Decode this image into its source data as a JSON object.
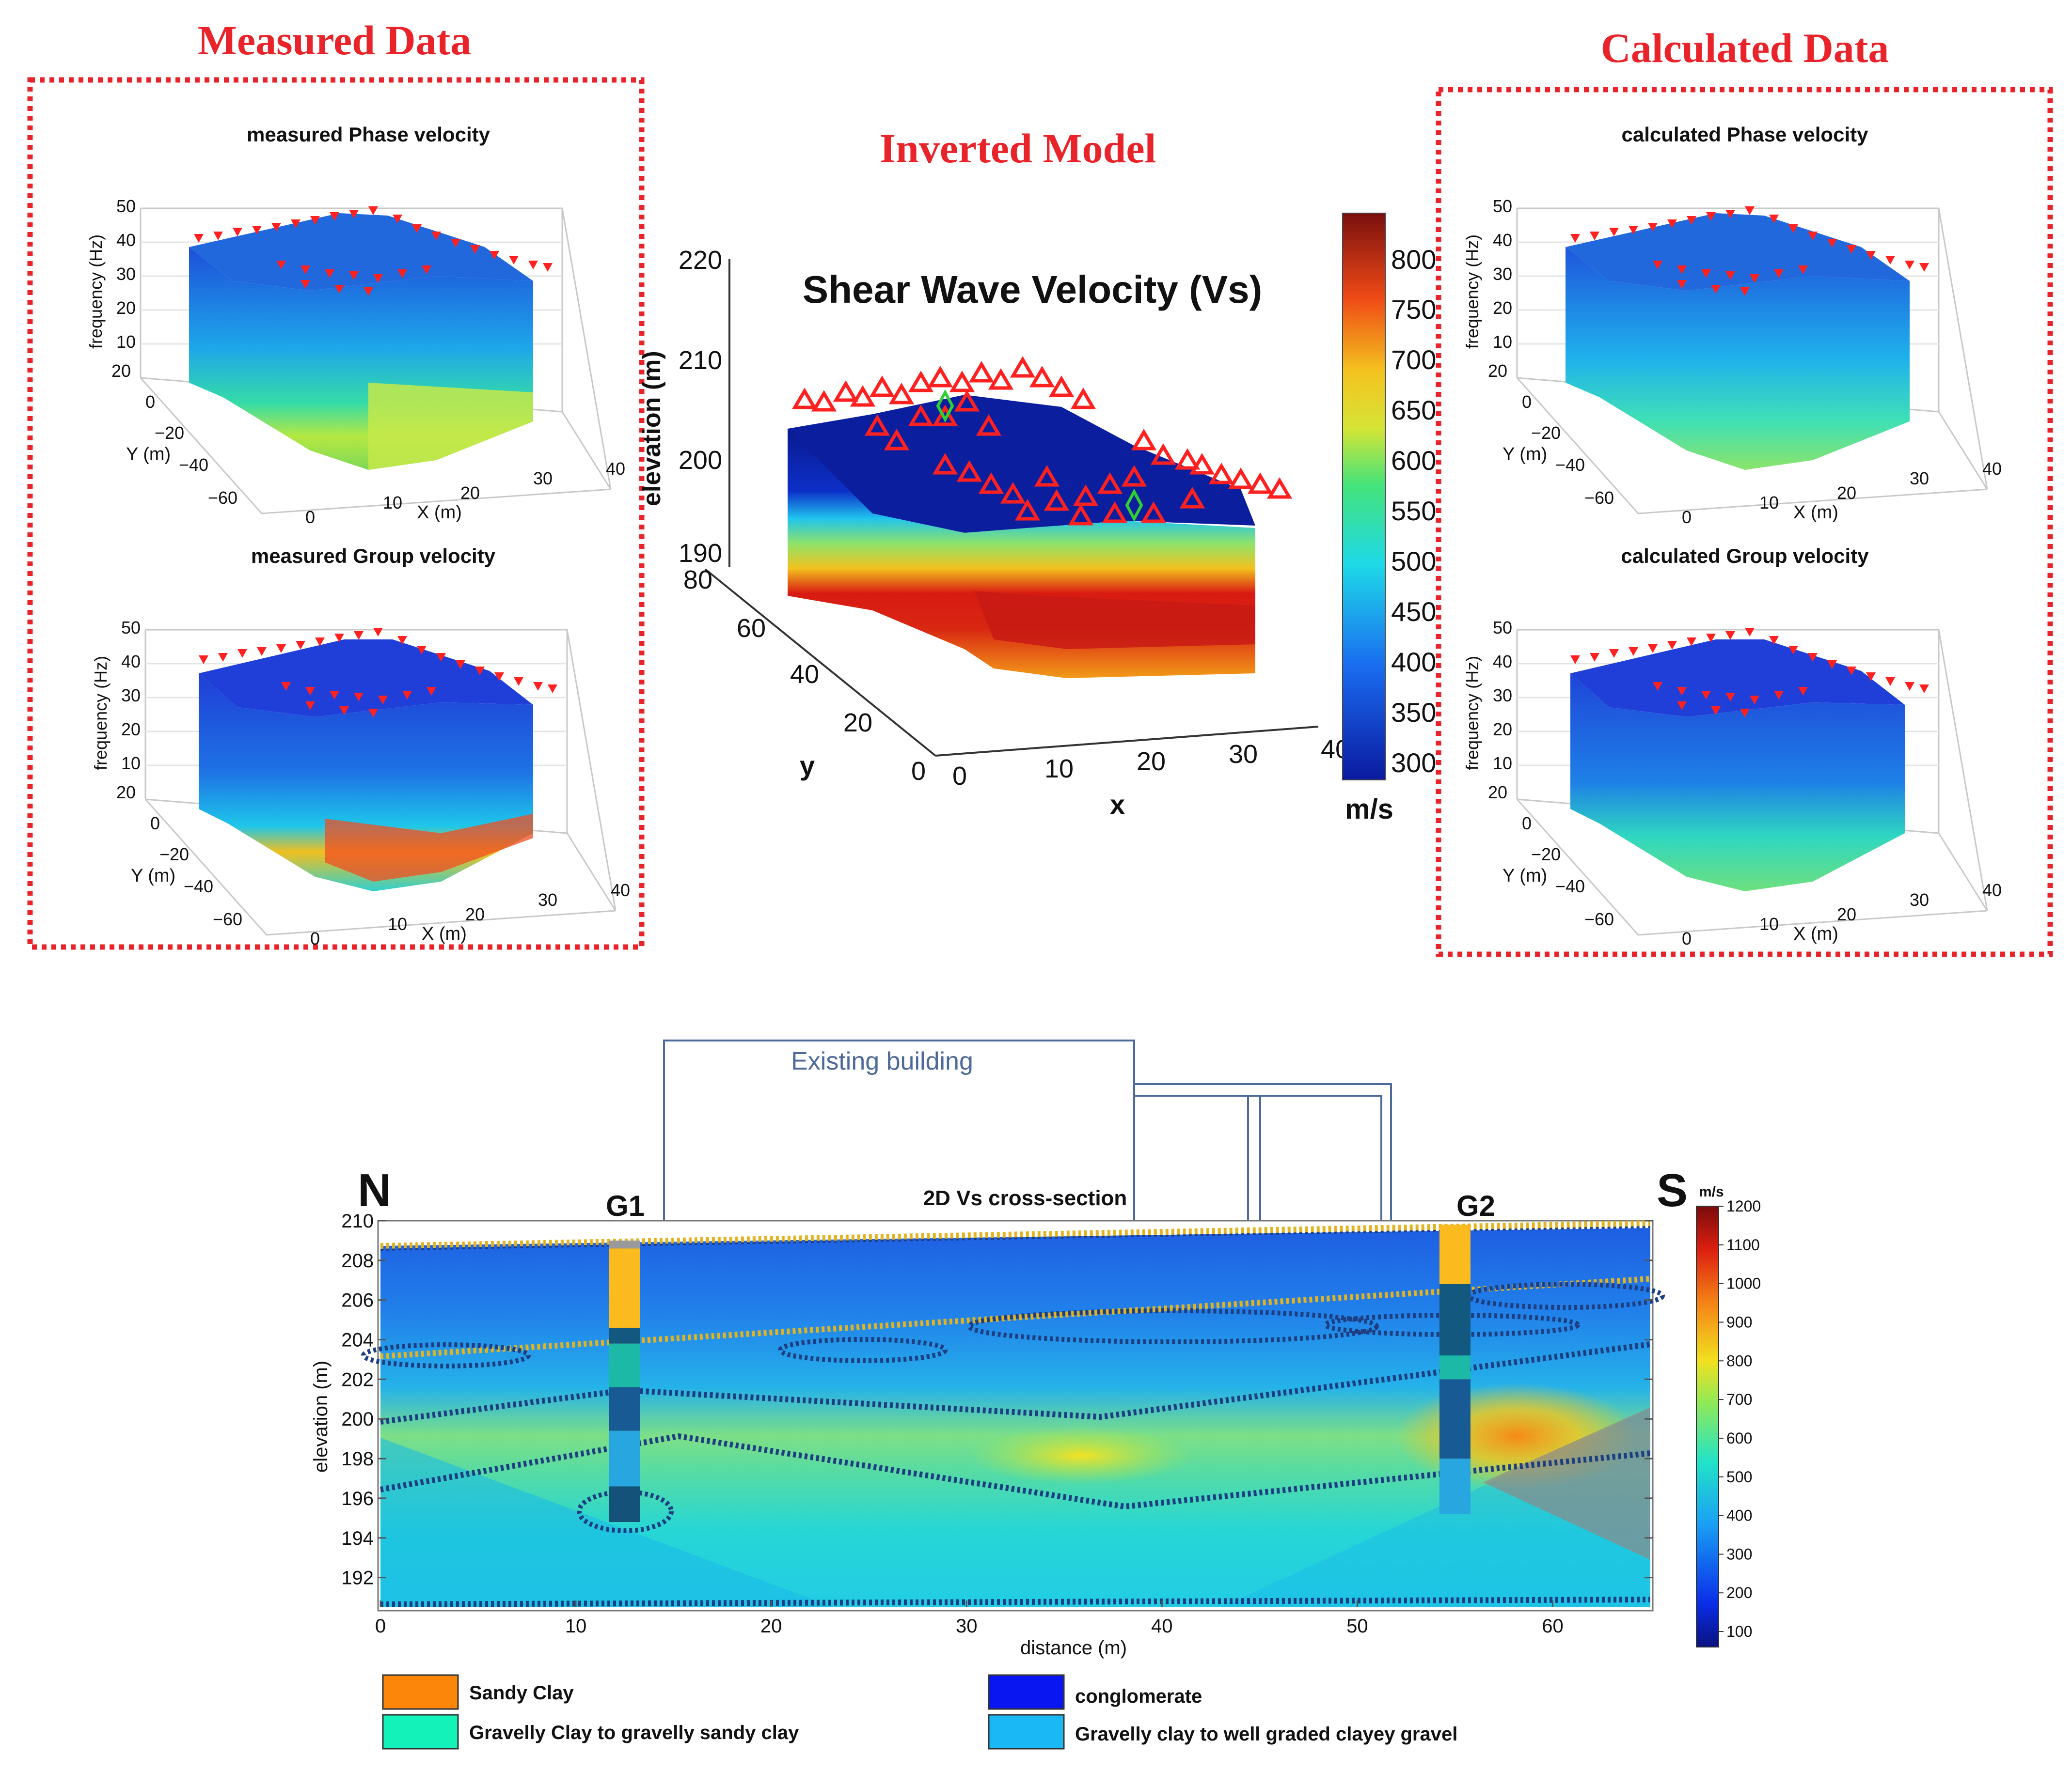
{
  "headers": {
    "measured": "Measured Data",
    "inverted": "Inverted Model",
    "calculated": "Calculated Data"
  },
  "palette": {
    "panel_border": "#e8242a",
    "header": "#e8242a",
    "deep_blue": "#0b1f9e",
    "blue": "#1f57e0",
    "cyan": "#1ec6f0",
    "green": "#3fd88b",
    "yellow": "#e6e033",
    "orange": "#f29a1c",
    "red": "#d51a12",
    "dark_red": "#7a0d0d",
    "station_marker": "#ff2020",
    "dotted_boundary": "#1d3f82",
    "building_line": "#4e6a9a"
  },
  "chart_data": [
    {
      "id": "measured-phase",
      "type": "3d-volume",
      "title": "measured Phase velocity",
      "zlabel": "frequency (Hz)",
      "ylabel": "Y (m)",
      "xlabel": "X (m)",
      "z_ticks": [
        "50",
        "40",
        "30",
        "20",
        "10"
      ],
      "y_ticks": [
        "20",
        "0",
        "−20",
        "−40",
        "−60"
      ],
      "x_ticks": [
        "0",
        "10",
        "20",
        "30",
        "40"
      ],
      "anomaly": "yellow-green band at depth"
    },
    {
      "id": "measured-group",
      "type": "3d-volume",
      "title": "measured Group velocity",
      "zlabel": "frequency (Hz)",
      "ylabel": "Y (m)",
      "xlabel": "X (m)",
      "z_ticks": [
        "50",
        "40",
        "30",
        "20",
        "10"
      ],
      "y_ticks": [
        "20",
        "0",
        "−20",
        "−40",
        "−60"
      ],
      "x_ticks": [
        "0",
        "10",
        "20",
        "30",
        "40"
      ],
      "anomaly": "red-yellow streaks at depth"
    },
    {
      "id": "inverted-model",
      "type": "3d-volume",
      "title": "Shear Wave Velocity (Vs)",
      "zlabel": "elevation (m)",
      "ylabel": "y",
      "xlabel": "x",
      "z_ticks": [
        "220",
        "210",
        "200",
        "190"
      ],
      "y_ticks": [
        "80",
        "60",
        "40",
        "20",
        "0"
      ],
      "x_ticks": [
        "0",
        "10",
        "20",
        "30",
        "40"
      ],
      "colorbar": {
        "label": "m/s",
        "ticks": [
          "800",
          "750",
          "700",
          "650",
          "600",
          "550",
          "500",
          "450",
          "400",
          "350",
          "300"
        ],
        "range": [
          280,
          840
        ]
      }
    },
    {
      "id": "calculated-phase",
      "type": "3d-volume",
      "title": "calculated Phase velocity",
      "zlabel": "frequency (Hz)",
      "ylabel": "Y (m)",
      "xlabel": "X (m)",
      "z_ticks": [
        "50",
        "40",
        "30",
        "20",
        "10"
      ],
      "y_ticks": [
        "20",
        "0",
        "−20",
        "−40",
        "−60"
      ],
      "x_ticks": [
        "0",
        "10",
        "20",
        "30",
        "40"
      ],
      "anomaly": "green band at depth"
    },
    {
      "id": "calculated-group",
      "type": "3d-volume",
      "title": "calculated Group velocity",
      "zlabel": "frequency (Hz)",
      "ylabel": "Y (m)",
      "xlabel": "X (m)",
      "z_ticks": [
        "50",
        "40",
        "30",
        "20",
        "10"
      ],
      "y_ticks": [
        "20",
        "0",
        "−20",
        "−40",
        "−60"
      ],
      "x_ticks": [
        "0",
        "10",
        "20",
        "30",
        "40"
      ],
      "anomaly": "green band at depth"
    },
    {
      "id": "cross-section",
      "type": "heatmap",
      "title": "2D Vs cross-section",
      "xlabel": "distance (m)",
      "ylabel": "elevation (m)",
      "xlim": [
        0,
        65
      ],
      "ylim": [
        190.5,
        210
      ],
      "x_ticks": [
        0,
        10,
        20,
        30,
        40,
        50,
        60
      ],
      "y_ticks": [
        192,
        194,
        196,
        198,
        200,
        202,
        204,
        206,
        208,
        210
      ],
      "colorbar": {
        "label": "m/s",
        "range": [
          60,
          1200
        ],
        "ticks": [
          1200,
          1100,
          1000,
          900,
          800,
          700,
          600,
          500,
          400,
          300,
          200,
          100
        ]
      },
      "north_label": "N",
      "south_label": "S",
      "building_label": "Existing building",
      "boreholes": [
        {
          "name": "G1",
          "x": 12.5,
          "layers": [
            {
              "top": 209.0,
              "bottom": 208.6,
              "color": "#9a9a9a"
            },
            {
              "top": 208.6,
              "bottom": 204.6,
              "color": "#fbbb1f"
            },
            {
              "top": 204.6,
              "bottom": 203.8,
              "color": "#13597f"
            },
            {
              "top": 203.8,
              "bottom": 201.6,
              "color": "#1cb9a6"
            },
            {
              "top": 201.6,
              "bottom": 199.4,
              "color": "#175a94"
            },
            {
              "top": 199.4,
              "bottom": 196.6,
              "color": "#27a6e0"
            },
            {
              "top": 196.6,
              "bottom": 194.8,
              "color": "#15527a"
            }
          ]
        },
        {
          "name": "G2",
          "x": 55,
          "layers": [
            {
              "top": 209.8,
              "bottom": 206.8,
              "color": "#fbbb1f"
            },
            {
              "top": 206.8,
              "bottom": 203.2,
              "color": "#13597f"
            },
            {
              "top": 203.2,
              "bottom": 202.0,
              "color": "#1cb9a6"
            },
            {
              "top": 202.0,
              "bottom": 198.0,
              "color": "#175a94"
            },
            {
              "top": 198.0,
              "bottom": 195.2,
              "color": "#27a6e0"
            }
          ]
        }
      ]
    }
  ],
  "legend": [
    {
      "label": "Sandy Clay",
      "color": "#fb860a"
    },
    {
      "label": "conglomerate",
      "color": "#0a16f2"
    },
    {
      "label": "Gravelly Clay to gravelly sandy clay",
      "color": "#13f2b8"
    },
    {
      "label": "Gravelly clay to well graded clayey gravel",
      "color": "#1ab8f4"
    }
  ]
}
